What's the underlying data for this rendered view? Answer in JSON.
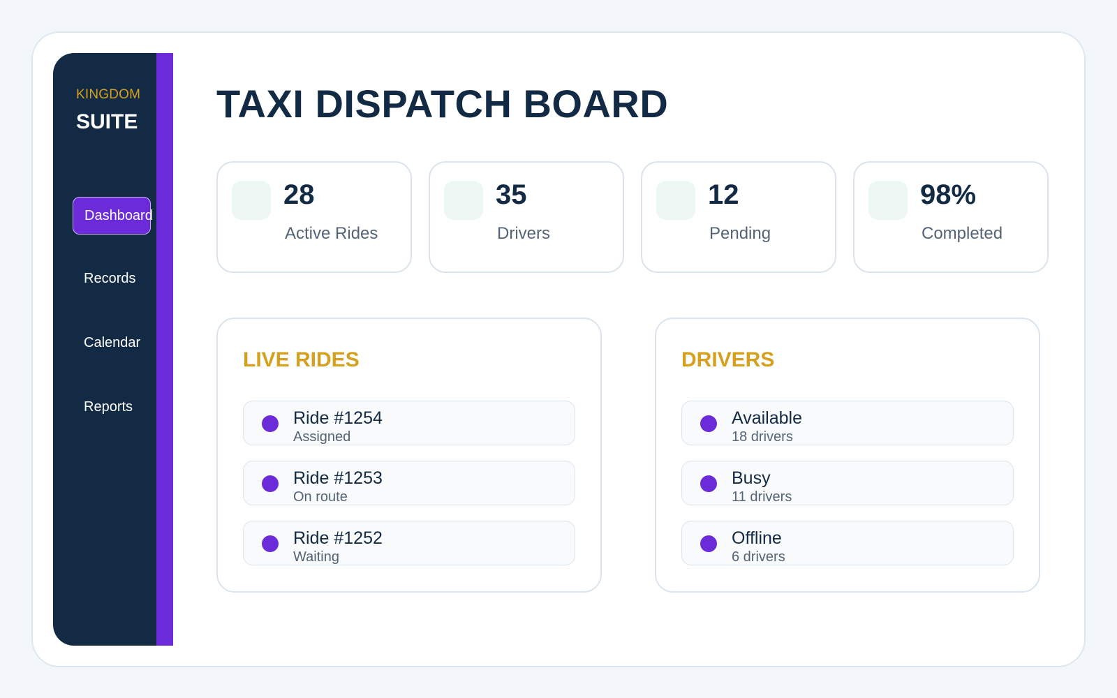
{
  "brand": {
    "top": "KINGDOM",
    "main": "SUITE"
  },
  "colors": {
    "accent": "#6c2bd9",
    "sidebar": "#132a44",
    "gold": "#d4a01e"
  },
  "nav": {
    "items": [
      {
        "label": "Dashboard",
        "active": true
      },
      {
        "label": "Records",
        "active": false
      },
      {
        "label": "Calendar",
        "active": false
      },
      {
        "label": "Reports",
        "active": false
      }
    ]
  },
  "page": {
    "title": "TAXI DISPATCH BOARD"
  },
  "stats": [
    {
      "value": "28",
      "label": "Active Rides"
    },
    {
      "value": "35",
      "label": "Drivers"
    },
    {
      "value": "12",
      "label": "Pending"
    },
    {
      "value": "98%",
      "label": "Completed"
    }
  ],
  "live_rides": {
    "title": "LIVE RIDES",
    "items": [
      {
        "title": "Ride #1254",
        "status": "Assigned"
      },
      {
        "title": "Ride #1253",
        "status": "On route"
      },
      {
        "title": "Ride #1252",
        "status": "Waiting"
      }
    ]
  },
  "drivers": {
    "title": "DRIVERS",
    "items": [
      {
        "title": "Available",
        "count": "18 drivers"
      },
      {
        "title": "Busy",
        "count": "11 drivers"
      },
      {
        "title": "Offline",
        "count": "6 drivers"
      }
    ]
  }
}
